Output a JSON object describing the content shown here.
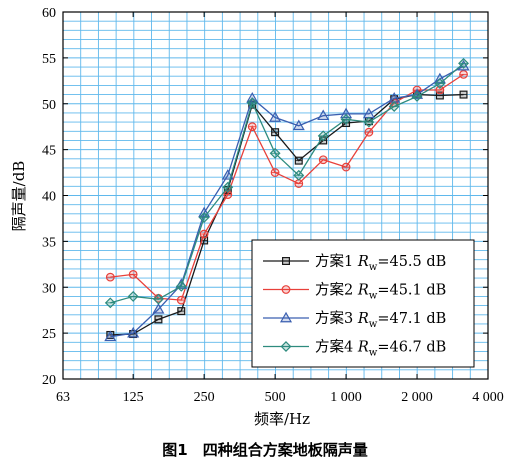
{
  "chart_data": {
    "type": "line",
    "title": "",
    "caption": "图1　四种组合方案地板隔声量",
    "xlabel": "频率/Hz",
    "ylabel": "隔声量/dB",
    "x_scale": "log",
    "xlim": [
      63,
      4000
    ],
    "ylim": [
      20,
      60
    ],
    "x_ticks": [
      63,
      125,
      250,
      500,
      1000,
      2000,
      4000
    ],
    "x_tick_labels": [
      "63",
      "125",
      "250",
      "500",
      "1 000",
      "2 000",
      "4 000"
    ],
    "y_ticks": [
      20,
      25,
      30,
      35,
      40,
      45,
      50,
      55,
      60
    ],
    "y_tick_labels": [
      "20",
      "25",
      "30",
      "35",
      "40",
      "45",
      "50",
      "55",
      "60"
    ],
    "grid": true,
    "legend_position": "bottom-right",
    "x": [
      100,
      125,
      160,
      200,
      250,
      315,
      400,
      500,
      630,
      800,
      1000,
      1250,
      1600,
      2000,
      2500,
      3150
    ],
    "series": [
      {
        "name": "方案1",
        "legend_prefix": "方案1 ",
        "legend_r": "R",
        "legend_sub": "w",
        "legend_suffix": "=45.5 dB",
        "color": "#1a1a1a",
        "marker": "square",
        "values": [
          24.8,
          24.9,
          26.5,
          27.4,
          35.1,
          40.6,
          49.9,
          46.9,
          43.8,
          46.0,
          47.9,
          48.1,
          50.5,
          51.0,
          50.9,
          51.0
        ]
      },
      {
        "name": "方案2",
        "legend_prefix": "方案2 ",
        "legend_r": "R",
        "legend_sub": "w",
        "legend_suffix": "=45.1 dB",
        "color": "#e8403a",
        "marker": "circle",
        "values": [
          31.1,
          31.4,
          28.8,
          28.6,
          35.8,
          40.1,
          47.5,
          42.5,
          41.3,
          43.9,
          43.1,
          46.9,
          50.1,
          51.5,
          51.5,
          53.2
        ]
      },
      {
        "name": "方案3",
        "legend_prefix": "方案3 ",
        "legend_r": "R",
        "legend_sub": "w",
        "legend_suffix": "=47.1 dB",
        "color": "#3a5fb0",
        "marker": "triangle",
        "values": [
          24.6,
          25.0,
          27.6,
          30.3,
          38.1,
          42.2,
          50.6,
          48.5,
          47.6,
          48.7,
          48.9,
          48.9,
          50.6,
          51.0,
          52.7,
          54.1
        ]
      },
      {
        "name": "方案4",
        "legend_prefix": "方案4 ",
        "legend_r": "R",
        "legend_sub": "w",
        "legend_suffix": "=46.7 dB",
        "color": "#2e8b7e",
        "marker": "diamond",
        "values": [
          28.3,
          29.0,
          28.7,
          30.1,
          37.6,
          40.9,
          50.1,
          44.6,
          42.2,
          46.5,
          48.3,
          48.0,
          49.7,
          50.8,
          52.2,
          54.4
        ]
      }
    ]
  },
  "colors": {
    "plot_background": "#ffffff",
    "grid": "#5fb8ec",
    "axis": "#000000"
  }
}
